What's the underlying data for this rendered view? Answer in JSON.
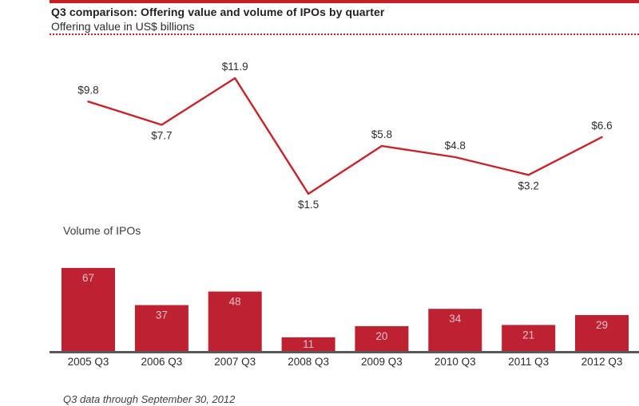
{
  "header": {
    "title": "Q3 comparison: Offering value and volume of IPOs by quarter",
    "subtitle": "Offering value in US$ billions"
  },
  "footer": {
    "note": "Q3 data through September 30, 2012"
  },
  "colors": {
    "accent_red": "#c42127",
    "line_red": "#c8232a",
    "bar_red": "#be2132",
    "bar_label_pink": "#f0c2c7",
    "axis_line_gray": "#58595b",
    "text_dark": "#231f20"
  },
  "chart_data": [
    {
      "type": "line",
      "title": "Offering value in US$ billions",
      "unit": "US$ billions",
      "categories": [
        "2005 Q3",
        "2006 Q3",
        "2007 Q3",
        "2008 Q3",
        "2009 Q3",
        "2010 Q3",
        "2011 Q3",
        "2012 Q3"
      ],
      "values": [
        9.8,
        7.7,
        11.9,
        1.5,
        5.8,
        4.8,
        3.2,
        6.6
      ],
      "labels": [
        "$9.8",
        "$7.7",
        "$11.9",
        "$1.5",
        "$5.8",
        "$4.8",
        "$3.2",
        "$6.6"
      ],
      "label_positions": [
        "above",
        "below",
        "above",
        "below",
        "above",
        "above",
        "below",
        "above"
      ],
      "legend": "none",
      "grid": false,
      "axes_visible": false
    },
    {
      "type": "bar",
      "title": "Volume of IPOs",
      "categories": [
        "2005 Q3",
        "2006 Q3",
        "2007 Q3",
        "2008 Q3",
        "2009 Q3",
        "2010 Q3",
        "2011 Q3",
        "2012 Q3"
      ],
      "values": [
        67,
        37,
        48,
        11,
        20,
        34,
        21,
        29
      ],
      "xlabel": "",
      "ylabel": "",
      "ylim": [
        0,
        110
      ],
      "legend": "none",
      "grid": false,
      "value_labels": "inside-top"
    }
  ]
}
